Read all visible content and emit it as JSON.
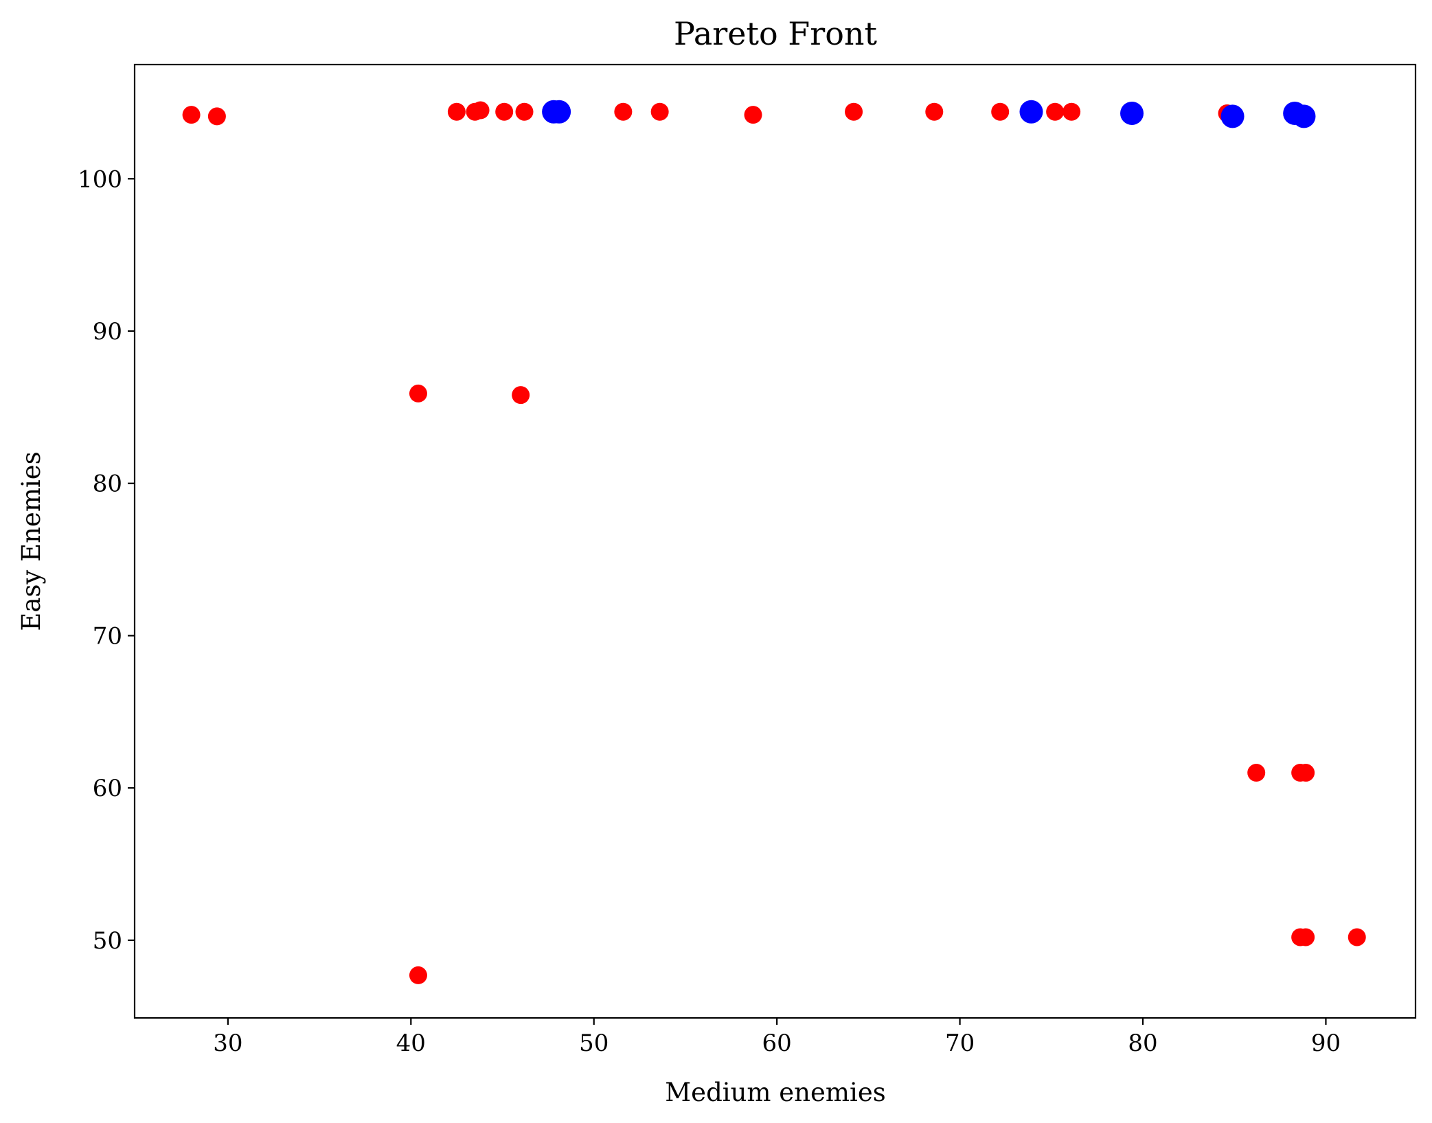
{
  "chart_data": {
    "type": "scatter",
    "title": "Pareto Front",
    "xlabel": "Medium enemies",
    "ylabel": "Easy Enemies",
    "xlim": [
      24.9,
      94.9
    ],
    "ylim": [
      44.9,
      107.5
    ],
    "xticks": [
      30,
      40,
      50,
      60,
      70,
      80,
      90
    ],
    "yticks": [
      50,
      60,
      70,
      80,
      90,
      100
    ],
    "grid": false,
    "series": [
      {
        "color": "#ff0000",
        "marker_size": "small",
        "points": [
          {
            "x": 28.0,
            "y": 104.2
          },
          {
            "x": 29.4,
            "y": 104.1
          },
          {
            "x": 42.5,
            "y": 104.4
          },
          {
            "x": 43.5,
            "y": 104.4
          },
          {
            "x": 43.8,
            "y": 104.5
          },
          {
            "x": 45.1,
            "y": 104.4
          },
          {
            "x": 46.2,
            "y": 104.4
          },
          {
            "x": 51.6,
            "y": 104.4
          },
          {
            "x": 53.6,
            "y": 104.4
          },
          {
            "x": 58.7,
            "y": 104.2
          },
          {
            "x": 64.2,
            "y": 104.4
          },
          {
            "x": 68.6,
            "y": 104.4
          },
          {
            "x": 72.2,
            "y": 104.4
          },
          {
            "x": 75.2,
            "y": 104.4
          },
          {
            "x": 76.1,
            "y": 104.4
          },
          {
            "x": 84.6,
            "y": 104.3
          },
          {
            "x": 40.4,
            "y": 85.9
          },
          {
            "x": 46.0,
            "y": 85.8
          },
          {
            "x": 86.2,
            "y": 61.0
          },
          {
            "x": 88.6,
            "y": 61.0
          },
          {
            "x": 88.9,
            "y": 61.0
          },
          {
            "x": 88.6,
            "y": 50.2
          },
          {
            "x": 88.9,
            "y": 50.2
          },
          {
            "x": 91.7,
            "y": 50.2
          },
          {
            "x": 40.4,
            "y": 47.7
          }
        ]
      },
      {
        "color": "#0000ff",
        "marker_size": "large",
        "points": [
          {
            "x": 47.8,
            "y": 104.4
          },
          {
            "x": 48.1,
            "y": 104.4
          },
          {
            "x": 73.9,
            "y": 104.4
          },
          {
            "x": 79.4,
            "y": 104.3
          },
          {
            "x": 84.9,
            "y": 104.1
          },
          {
            "x": 88.3,
            "y": 104.3
          },
          {
            "x": 88.8,
            "y": 104.1
          }
        ]
      }
    ]
  }
}
